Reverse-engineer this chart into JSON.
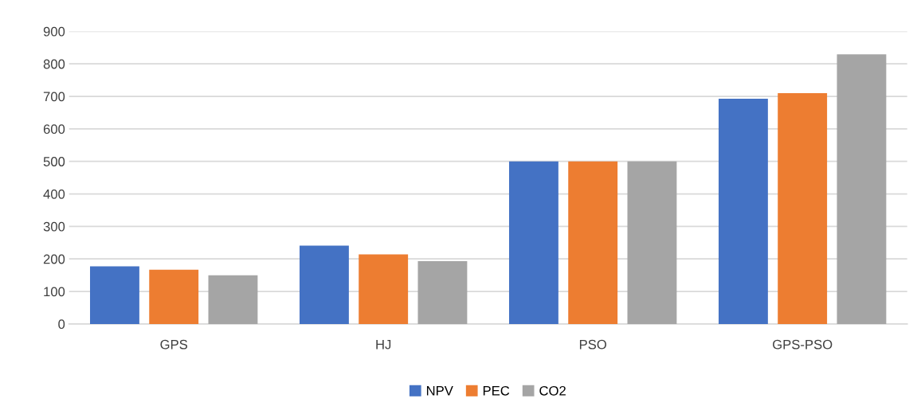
{
  "chart_data": {
    "type": "bar",
    "categories": [
      "GPS",
      "HJ",
      "PSO",
      "GPS-PSO"
    ],
    "series": [
      {
        "name": "NPV",
        "color": "#4472c4",
        "values": [
          177,
          241,
          500,
          693
        ]
      },
      {
        "name": "PEC",
        "color": "#ed7d31",
        "values": [
          167,
          214,
          500,
          710
        ]
      },
      {
        "name": "CO2",
        "color": "#a5a5a5",
        "values": [
          150,
          193,
          500,
          829
        ]
      }
    ],
    "ylim": [
      0,
      900
    ],
    "yticks": [
      0,
      100,
      200,
      300,
      400,
      500,
      600,
      700,
      800,
      900
    ],
    "grid": "y",
    "legend": "bottom"
  }
}
